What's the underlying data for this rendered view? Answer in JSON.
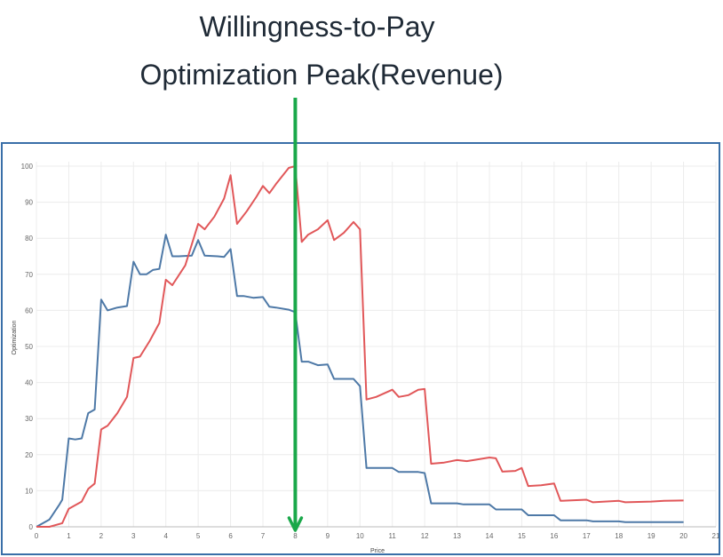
{
  "title": {
    "line1": "Willingness-to-Pay",
    "line2": "Optimization  Peak(Revenue)"
  },
  "colors": {
    "frame": "#3a6fa8",
    "marker": "#1aa84a"
  },
  "chart_data": {
    "type": "line",
    "xlabel": "Price",
    "ylabel": "Optimization",
    "xlim": [
      0,
      21
    ],
    "ylim": [
      0,
      100
    ],
    "xticks": [
      0,
      1,
      2,
      3,
      4,
      5,
      6,
      7,
      8,
      9,
      10,
      11,
      12,
      13,
      14,
      15,
      16,
      17,
      18,
      19,
      20,
      21
    ],
    "yticks": [
      0,
      10,
      20,
      30,
      40,
      50,
      60,
      70,
      80,
      90,
      100
    ],
    "grid": true,
    "marker_x": 8,
    "series": [
      {
        "color": "#4e79a7",
        "points": [
          [
            0,
            0
          ],
          [
            0.4,
            2
          ],
          [
            0.7,
            6
          ],
          [
            0.8,
            7.5
          ],
          [
            1.0,
            24.5
          ],
          [
            1.2,
            24.2
          ],
          [
            1.4,
            24.5
          ],
          [
            1.6,
            31.5
          ],
          [
            1.8,
            32.5
          ],
          [
            2.0,
            63
          ],
          [
            2.2,
            60
          ],
          [
            2.5,
            60.8
          ],
          [
            2.8,
            61.2
          ],
          [
            3.0,
            73.5
          ],
          [
            3.2,
            70
          ],
          [
            3.4,
            70
          ],
          [
            3.6,
            71.2
          ],
          [
            3.8,
            71.5
          ],
          [
            4.0,
            81
          ],
          [
            4.2,
            75
          ],
          [
            4.4,
            75
          ],
          [
            4.8,
            75.2
          ],
          [
            5.0,
            79.5
          ],
          [
            5.2,
            75.2
          ],
          [
            5.6,
            75
          ],
          [
            5.8,
            74.8
          ],
          [
            6.0,
            77
          ],
          [
            6.2,
            64
          ],
          [
            6.4,
            64
          ],
          [
            6.7,
            63.5
          ],
          [
            7.0,
            63.7
          ],
          [
            7.2,
            61
          ],
          [
            7.4,
            60.8
          ],
          [
            7.8,
            60.2
          ],
          [
            8.0,
            59.5
          ],
          [
            8.2,
            45.8
          ],
          [
            8.4,
            45.8
          ],
          [
            8.7,
            44.8
          ],
          [
            9.0,
            45
          ],
          [
            9.2,
            41
          ],
          [
            9.8,
            41
          ],
          [
            10.0,
            39
          ],
          [
            10.2,
            16.3
          ],
          [
            11.0,
            16.3
          ],
          [
            11.2,
            15.2
          ],
          [
            11.8,
            15.2
          ],
          [
            12.0,
            14.9
          ],
          [
            12.2,
            6.5
          ],
          [
            13.0,
            6.5
          ],
          [
            13.2,
            6.2
          ],
          [
            14.0,
            6.2
          ],
          [
            14.2,
            4.8
          ],
          [
            15.0,
            4.8
          ],
          [
            15.2,
            3.2
          ],
          [
            16.0,
            3.2
          ],
          [
            16.2,
            1.8
          ],
          [
            17.0,
            1.8
          ],
          [
            17.2,
            1.5
          ],
          [
            18.0,
            1.5
          ],
          [
            18.2,
            1.3
          ],
          [
            20.0,
            1.3
          ]
        ]
      },
      {
        "color": "#e15759",
        "points": [
          [
            0,
            0
          ],
          [
            0.4,
            0
          ],
          [
            0.8,
            1
          ],
          [
            1.0,
            5
          ],
          [
            1.4,
            7
          ],
          [
            1.6,
            10.5
          ],
          [
            1.8,
            12
          ],
          [
            2.0,
            27
          ],
          [
            2.2,
            28
          ],
          [
            2.5,
            31.5
          ],
          [
            2.8,
            36
          ],
          [
            3.0,
            46.8
          ],
          [
            3.2,
            47.2
          ],
          [
            3.5,
            51.5
          ],
          [
            3.8,
            56.5
          ],
          [
            4.0,
            68.5
          ],
          [
            4.2,
            67
          ],
          [
            4.6,
            72.5
          ],
          [
            5.0,
            84
          ],
          [
            5.2,
            82.5
          ],
          [
            5.5,
            86
          ],
          [
            5.8,
            91
          ],
          [
            6.0,
            97.5
          ],
          [
            6.2,
            84
          ],
          [
            6.5,
            87.5
          ],
          [
            6.8,
            91.5
          ],
          [
            7.0,
            94.5
          ],
          [
            7.2,
            92.5
          ],
          [
            7.4,
            95
          ],
          [
            7.8,
            99.5
          ],
          [
            8.0,
            100
          ],
          [
            8.2,
            79
          ],
          [
            8.4,
            81
          ],
          [
            8.7,
            82.5
          ],
          [
            9.0,
            85
          ],
          [
            9.2,
            79.5
          ],
          [
            9.5,
            81.5
          ],
          [
            9.8,
            84.5
          ],
          [
            10.0,
            82.5
          ],
          [
            10.2,
            35.3
          ],
          [
            10.5,
            36
          ],
          [
            11.0,
            38
          ],
          [
            11.2,
            36
          ],
          [
            11.5,
            36.5
          ],
          [
            11.8,
            38
          ],
          [
            12.0,
            38.2
          ],
          [
            12.2,
            17.5
          ],
          [
            12.6,
            17.8
          ],
          [
            13.0,
            18.5
          ],
          [
            13.3,
            18.2
          ],
          [
            14.0,
            19.2
          ],
          [
            14.2,
            19
          ],
          [
            14.4,
            15.3
          ],
          [
            14.8,
            15.5
          ],
          [
            15.0,
            16.3
          ],
          [
            15.2,
            11.3
          ],
          [
            15.6,
            11.5
          ],
          [
            16.0,
            12
          ],
          [
            16.2,
            7.2
          ],
          [
            17.0,
            7.5
          ],
          [
            17.2,
            6.8
          ],
          [
            18.0,
            7.2
          ],
          [
            18.2,
            6.8
          ],
          [
            19.0,
            7
          ],
          [
            19.4,
            7.2
          ],
          [
            20.0,
            7.3
          ]
        ]
      }
    ]
  }
}
